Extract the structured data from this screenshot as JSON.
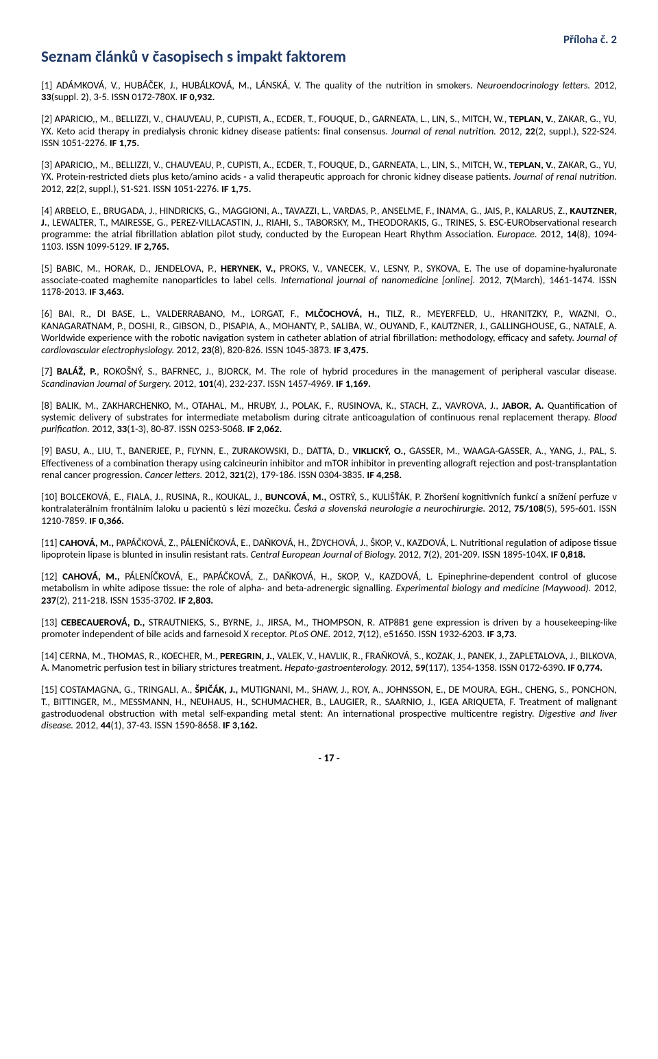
{
  "appendix": "Příloha č. 2",
  "title": "Seznam článků v časopisech s impakt faktorem",
  "page_number": "- 17 -",
  "entries": [
    {
      "n": "[1] ",
      "a": "ADÁMKOVÁ, V., HUBÁČEK, J., HUBÁLKOVÁ, M., LÁNSKÁ, V. ",
      "t": "The quality of the nutrition in smokers. ",
      "j": "Neuroendocrinology letters. ",
      "y": "2012, ",
      "v": "33",
      "s": "(suppl. 2), 3-5. ISSN 0172-780X. ",
      "f": "IF 0,932."
    },
    {
      "n": "[2] ",
      "a": "APARICIO,, M., BELLIZZI, V., CHAUVEAU, P., CUPISTI, A., ECDER, T., FOUQUE, D., GARNEATA, L., LIN, S., MITCH, W., ",
      "ab": "TEPLAN, V.",
      "a2": ", ZAKAR, G., YU, YX. ",
      "t": "Keto acid therapy in predialysis chronic kidney disease patients: final consensus. ",
      "j": "Journal of renal nutrition. ",
      "y": "2012, ",
      "v": "22",
      "s": "(2, suppl.), S22-S24. ISSN 1051-2276. ",
      "f": "IF 1,75."
    },
    {
      "n": "[3] ",
      "a": "APARICIO,, M., BELLIZZI, V., CHAUVEAU, P., CUPISTI, A., ECDER, T., FOUQUE, D., GARNEATA, L., LIN, S., MITCH, W., ",
      "ab": "TEPLAN, V.",
      "a2": ", ZAKAR, G., YU, YX. ",
      "t": "Protein-restricted diets plus keto/amino acids - a valid therapeutic approach for chronic kidney disease patients. ",
      "j": "Journal of renal nutrition. ",
      "y": "2012, ",
      "v": "22",
      "s": "(2, suppl.), S1-S21. ISSN 1051-2276. ",
      "f": "IF 1,75."
    },
    {
      "n": "[4] ",
      "a": "ARBELO, E., BRUGADA, J., HINDRICKS, G., MAGGIONI, A., TAVAZZI, L., VARDAS, P., ANSELME, F., INAMA, G., JAIS, P., KALARUS, Z., ",
      "ab": "KAUTZNER, J.",
      "a2": ", LEWALTER, T., MAIRESSE, G., PEREZ-VILLACASTIN, J., RIAHI, S., TABORSKY, M., THEODORAKIS, G., TRINES, S. ",
      "t": "ESC-EURObservational research programme: the atrial fibrillation ablation pilot study, conducted by the European Heart Rhythm Association. ",
      "j": "Europace. ",
      "y": "2012, ",
      "v": "14",
      "s": "(8), 1094-1103. ISSN 1099-5129. ",
      "f": "IF 2,765."
    },
    {
      "n": "[5] ",
      "a": "BABIC, M., HORAK, D., JENDELOVA, P., ",
      "ab": "HERYNEK, V.,",
      "a2": " PROKS, V., VANECEK, V., LESNY, P., SYKOVA, E. ",
      "t": "The use of dopamine-hyaluronate associate-coated maghemite nanoparticles to label cells. ",
      "j": "International journal of nanomedicine [online]. ",
      "y": "2012, ",
      "v": "7",
      "s": "(March), 1461-1474. ISSN 1178-2013. ",
      "f": "IF 3,463."
    },
    {
      "n": "[6] ",
      "a": "BAI, R., DI BASE, L., VALDERRABANO, M., LORGAT, F., ",
      "ab": "MLČOCHOVÁ, H.,",
      "a2": " TILZ, R., MEYERFELD, U., HRANITZKY, P., WAZNI, O., KANAGARATNAM, P., DOSHI, R., GIBSON, D., PISAPIA, A., MOHANTY, P., SALIBA, W., OUYAND, F., KAUTZNER, J., GALLINGHOUSE, G., NATALE, A. ",
      "t": "Worldwide experience with the robotic navigation system in catheter ablation of atrial fibrillation: methodology, efficacy and safety. ",
      "j": "Journal of cardiovascular electrophysiology. ",
      "y": "2012, ",
      "v": "23",
      "s": "(8), 820-826. ISSN 1045-3873. ",
      "f": "IF 3,475."
    },
    {
      "n": "[7",
      "nb": "] BALÁŽ, P.",
      "a": ", ROKOŠNÝ, S., BAFRNEC, J., BJORCK, M. ",
      "t": "The role of hybrid procedures in the management of peripheral vascular disease. ",
      "j": "Scandinavian Journal of Surgery. ",
      "y": "2012, ",
      "v": "101",
      "s": "(4), 232-237. ISSN 1457-4969. ",
      "f": "IF 1,169."
    },
    {
      "n": "[8] ",
      "a": "BALIK, M., ZAKHARCHENKO, M., OTAHAL, M., HRUBY, J., POLAK, F., RUSINOVA, K., STACH, Z., VAVROVA, J., ",
      "ab": "JABOR, A.",
      "a2": " ",
      "t": "Quantification of systemic delivery of substrates for intermediate metabolism during citrate anticoagulation of continuous renal replacement therapy. ",
      "j": "Blood purification. ",
      "y": "2012, ",
      "v": "33",
      "s": "(1-3), 80-87. ISSN 0253-5068. ",
      "f": "IF 2,062."
    },
    {
      "n": "[9] ",
      "a": "BASU, A., LIU, T., BANERJEE, P., FLYNN, E., ZURAKOWSKI, D., DATTA, D., ",
      "ab": "VIKLICKÝ, O.,",
      "a2": " GASSER, M., WAAGA-GASSER, A., YANG, J., PAL, S. ",
      "t": "Effectiveness of a combination therapy using calcineurin inhibitor and mTOR inhibitor in preventing allograft rejection and post-transplantation renal cancer progression. ",
      "j": "Cancer letters. ",
      "y": "2012, ",
      "v": "321",
      "s": "(2), 179-186. ISSN 0304-3835. ",
      "f": "IF 4,258."
    },
    {
      "n": "[10] ",
      "a": "BOLCEKOVÁ, E., FIALA, J., RUSINA, R., KOUKAL, J., ",
      "ab": "BUNCOVÁ, M.,",
      "a2": " OSTRÝ, S., KULIŠŤÁK, P. ",
      "t": "Zhoršení kognitivních funkcí a snížení perfuze v kontralaterálním frontálním laloku u pacientů s lézí mozečku. ",
      "j": "Česká a slovenská neurologie a neurochirurgie. ",
      "y": "2012, ",
      "v": "75/108",
      "s": "(5), 595-601. ISSN 1210-7859. ",
      "f": "IF 0,366."
    },
    {
      "n": "[11] ",
      "ab": "CAHOVÁ, M.,",
      "a2": " PAPÁČKOVÁ, Z., PÁLENÍČKOVÁ, E., DAŇKOVÁ, H., ŽDYCHOVÁ, J., ŠKOP, V., KAZDOVÁ, L. ",
      "t": "Nutritional regulation of adipose tissue lipoprotein lipase is blunted in insulin resistant rats. ",
      "j": "Central European Journal of Biology. ",
      "y": "2012, ",
      "v": "7",
      "s": "(2), 201-209. ISSN 1895-104X. ",
      "f": "IF 0,818."
    },
    {
      "n": "[12] ",
      "ab": "CAHOVÁ, M.,",
      "a2": " PÁLENÍČKOVÁ, E., PAPÁČKOVÁ, Z., DAŇKOVÁ, H., SKOP, V., KAZDOVÁ, L. ",
      "t": "Epinephrine-dependent control of glucose metabolism in white adipose tissue: the role of alpha- and beta-adrenergic signalling. ",
      "j": "Experimental biology and medicine (Maywood). ",
      "y": "2012, ",
      "v": "237",
      "s": "(2), 211-218. ISSN 1535-3702. ",
      "f": "IF 2,803."
    },
    {
      "n": "[13] ",
      "ab": "CEBECAUEROVÁ, D.,",
      "a2": " STRAUTNIEKS, S., BYRNE, J., JIRSA, M., THOMPSON, R. ",
      "t": "ATP8B1 gene expression is driven by a housekeeping-like promoter independent of bile acids and farnesoid X receptor. ",
      "j": "PLoS ONE. ",
      "y": "2012, ",
      "v": "7",
      "s": "(12), e51650. ISSN 1932-6203. ",
      "f": "IF 3,73."
    },
    {
      "n": "[14] ",
      "a": "CERNA, M., THOMAS, R., KOECHER, M., ",
      "ab": "PEREGRIN, J.,",
      "a2": " VALEK, V., HAVLIK, R., FRAŇKOVÁ, S., KOZAK, J., PANEK, J., ZAPLETALOVA, J., BILKOVA, A. ",
      "t": "Manometric perfusion test in biliary strictures treatment. ",
      "j": "Hepato-gastroenterology. ",
      "y": "2012, ",
      "v": "59",
      "s": "(117), 1354-1358. ISSN 0172-6390. ",
      "f": "IF 0,774."
    },
    {
      "n": "[15] ",
      "a": "COSTAMAGNA, G., TRINGALI, A., ",
      "ab": "ŠPIČÁK, J.,",
      "a2": " MUTIGNANI, M., SHAW, J., ROY, A., JOHNSSON, E., DE MOURA, EGH., CHENG, S., PONCHON, T., BITTINGER, M., MESSMANN, H., NEUHAUS, H., SCHUMACHER, B., LAUGIER, R., SAARNIO, J., IGEA ARIQUETA, F. ",
      "t": "Treatment of malignant gastroduodenal obstruction with metal self-expanding metal stent: An international prospective multicentre registry. ",
      "j": "Digestive and liver disease. ",
      "y": "2012, ",
      "v": "44",
      "s": "(1), 37-43. ISSN 1590-8658. ",
      "f": "IF 3,162."
    }
  ]
}
